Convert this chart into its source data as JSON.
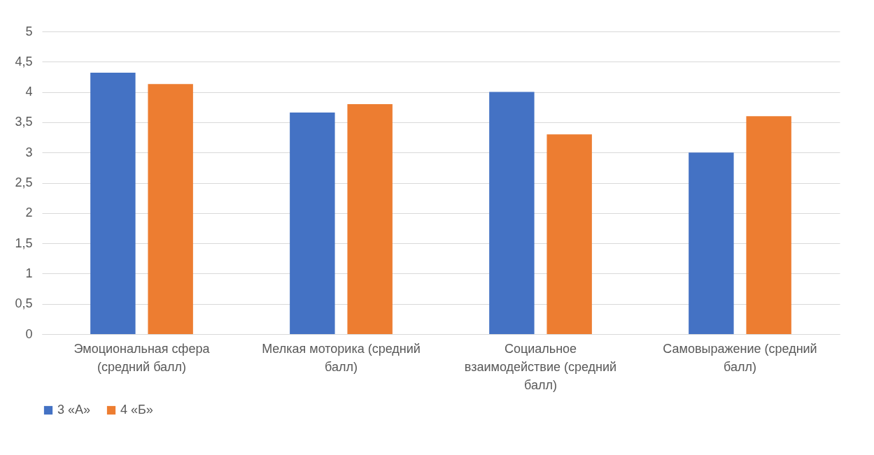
{
  "chart_data": {
    "type": "bar",
    "categories": [
      "Эмоциональная сфера (средний балл)",
      "Мелкая моторика (средний балл)",
      "Социальное взаимодействие (средний балл)",
      "Самовыражение (средний балл)"
    ],
    "series": [
      {
        "name": "3 «А»",
        "color": "#4472c4",
        "values": [
          4.32,
          3.66,
          4.0,
          3.0
        ]
      },
      {
        "name": "4 «Б»",
        "color": "#ed7d31",
        "values": [
          4.13,
          3.8,
          3.3,
          3.6
        ]
      }
    ],
    "ylim": [
      0,
      5
    ],
    "yticks": [
      0,
      {
        "value": 0.5,
        "label": "0,5"
      },
      1,
      {
        "value": 1.5,
        "label": "1,5"
      },
      2,
      {
        "value": 2.5,
        "label": "2,5"
      },
      3,
      {
        "value": 3.5,
        "label": "3,5"
      },
      4,
      {
        "value": 4.5,
        "label": "4,5"
      },
      5
    ],
    "grid": "y",
    "legend": "bottom"
  }
}
